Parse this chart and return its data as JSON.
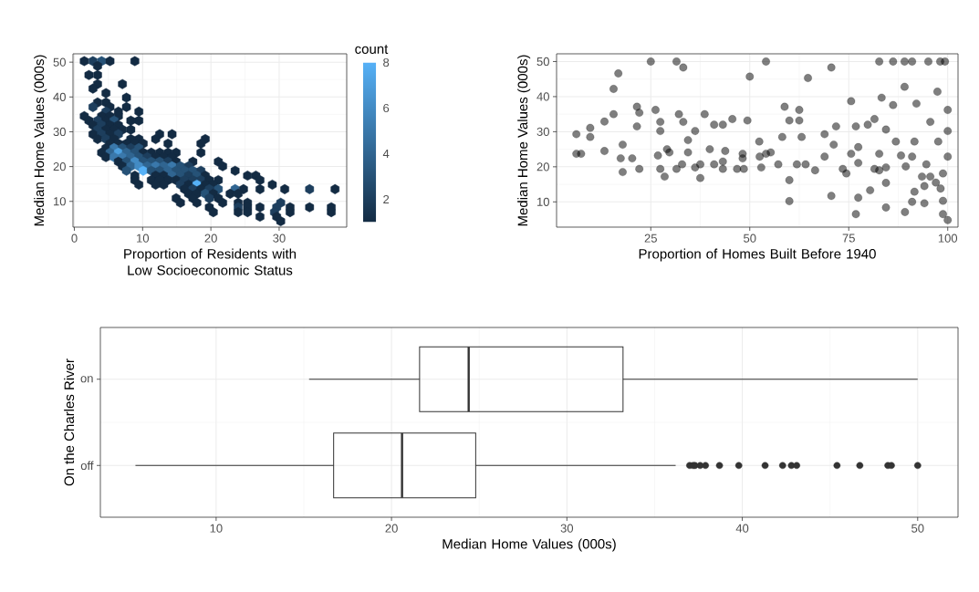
{
  "chart_data": [
    {
      "type": "scatter",
      "xlabel": "Proportion of Residents with Low Socioeconomic Status",
      "ylabel": "Median Home Values (000s)",
      "clabel": "count",
      "xlim": [
        -0.2,
        39.9
      ],
      "ylim": [
        2.6,
        52.4
      ],
      "xticks": [
        0,
        10,
        20,
        30
      ],
      "yticks": [
        10,
        20,
        30,
        40,
        50
      ],
      "clim": [
        1,
        8
      ],
      "cticks": [
        2,
        4,
        6,
        8
      ],
      "grid": true,
      "x": [
        1.45,
        2.72,
        3.99,
        5.22,
        8.86,
        3.4,
        2.13,
        3.4,
        3.4,
        7.04,
        2.72,
        4.63,
        7.63,
        3.4,
        4.63,
        2.72,
        5.22,
        7.63,
        4.63,
        6.45,
        9.45,
        1.45,
        3.99,
        5.22,
        6.45,
        2.13,
        3.4,
        4.63,
        5.81,
        8.27,
        9.45,
        2.72,
        3.99,
        5.22,
        6.45,
        3.4,
        4.63,
        5.81,
        7.04,
        8.27,
        2.72,
        3.99,
        5.22,
        6.45,
        12.5,
        14.31,
        3.4,
        4.63,
        5.81,
        8.27,
        9.45,
        11.91,
        19.18,
        5.22,
        6.45,
        7.63,
        8.86,
        10.09,
        13.72,
        18.54,
        4.63,
        5.81,
        7.04,
        8.27,
        9.45,
        3.99,
        5.22,
        6.45,
        7.63,
        8.86,
        10.09,
        11.27,
        12.5,
        13.72,
        14.91,
        18.54,
        4.63,
        5.81,
        7.04,
        8.27,
        9.45,
        10.68,
        11.91,
        13.09,
        14.31,
        6.45,
        7.63,
        8.86,
        10.09,
        11.27,
        12.5,
        13.72,
        14.91,
        17.36,
        21.09,
        7.04,
        8.27,
        9.45,
        10.68,
        11.91,
        13.09,
        14.31,
        15.54,
        16.73,
        21.73,
        7.63,
        10.09,
        11.27,
        12.5,
        13.72,
        14.91,
        16.14,
        17.36,
        18.54,
        23.55,
        8.86,
        11.91,
        13.09,
        14.31,
        15.54,
        16.73,
        17.95,
        19.18,
        25.37,
        26.59,
        8.86,
        11.27,
        12.5,
        13.72,
        14.91,
        16.14,
        17.36,
        18.54,
        19.77,
        21.09,
        27.19,
        9.45,
        11.91,
        13.09,
        15.54,
        16.73,
        17.95,
        19.18,
        20.36,
        29.0,
        16.14,
        17.36,
        18.54,
        19.77,
        21.09,
        23.55,
        24.78,
        27.19,
        30.82,
        34.46,
        38.19,
        16.73,
        17.95,
        19.18,
        20.36,
        22.82,
        24.0,
        14.91,
        17.36,
        19.77,
        21.09,
        15.54,
        17.95,
        21.73,
        24.0,
        25.37,
        30.23,
        19.77,
        24.0,
        25.37,
        27.19,
        29.64,
        31.6,
        34.46,
        37.64,
        20.36,
        24.0,
        25.37,
        29.32,
        31.6,
        37.64,
        27.19,
        29.64,
        30.23
      ],
      "values": [
        50.3,
        50.3,
        50.3,
        50.3,
        50.3,
        48.9,
        46.3,
        46.3,
        43.7,
        43.7,
        42.4,
        41.1,
        39.8,
        38.4,
        38.4,
        37.1,
        37.1,
        37.1,
        35.8,
        35.8,
        35.8,
        34.5,
        34.5,
        34.5,
        34.5,
        33.2,
        33.2,
        33.2,
        33.2,
        33.2,
        33.2,
        31.9,
        31.9,
        31.9,
        31.9,
        30.6,
        30.6,
        30.6,
        30.6,
        30.6,
        29.3,
        29.3,
        29.3,
        29.3,
        29.3,
        29.3,
        27.9,
        27.9,
        27.9,
        27.9,
        27.9,
        27.9,
        27.9,
        26.6,
        26.6,
        26.6,
        26.6,
        26.6,
        26.6,
        26.6,
        25.3,
        25.3,
        25.3,
        25.3,
        25.3,
        24.0,
        24.0,
        24.0,
        24.0,
        24.0,
        24.0,
        24.0,
        24.0,
        24.0,
        24.0,
        24.0,
        22.7,
        22.7,
        22.7,
        22.7,
        22.7,
        22.7,
        22.7,
        22.7,
        22.7,
        21.4,
        21.4,
        21.4,
        21.4,
        21.4,
        21.4,
        21.4,
        21.4,
        21.4,
        21.4,
        20.1,
        20.1,
        20.1,
        20.1,
        20.1,
        20.1,
        20.1,
        20.1,
        20.1,
        20.1,
        18.8,
        18.8,
        18.8,
        18.8,
        18.8,
        18.8,
        18.8,
        18.8,
        18.8,
        18.8,
        17.4,
        17.4,
        17.4,
        17.4,
        17.4,
        17.4,
        17.4,
        17.4,
        17.4,
        17.4,
        16.1,
        16.1,
        16.1,
        16.1,
        16.1,
        16.1,
        16.1,
        16.1,
        16.1,
        16.1,
        16.1,
        14.8,
        14.8,
        14.8,
        14.8,
        14.8,
        14.8,
        14.8,
        14.8,
        14.8,
        13.5,
        13.5,
        13.5,
        13.5,
        13.5,
        13.5,
        13.5,
        13.5,
        13.5,
        13.5,
        13.5,
        12.2,
        12.2,
        12.2,
        12.2,
        12.2,
        12.2,
        10.9,
        10.9,
        10.9,
        10.9,
        9.6,
        9.6,
        9.6,
        9.6,
        9.6,
        9.6,
        8.3,
        8.3,
        8.3,
        8.3,
        8.3,
        8.3,
        8.3,
        8.3,
        6.9,
        6.9,
        6.9,
        6.9,
        6.9,
        6.9,
        5.6,
        5.6,
        4.3
      ],
      "cvalues": [
        1,
        2,
        3,
        1,
        1,
        1,
        1,
        1,
        1,
        1,
        1,
        1,
        1,
        1,
        1,
        2,
        1,
        1,
        2,
        1,
        1,
        1,
        1,
        1,
        1,
        1,
        2,
        1,
        3,
        1,
        1,
        1,
        2,
        1,
        1,
        2,
        1,
        1,
        1,
        1,
        1,
        2,
        1,
        2,
        1,
        1,
        1,
        2,
        1,
        1,
        1,
        1,
        1,
        1,
        1,
        1,
        1,
        1,
        1,
        1,
        1,
        5,
        3,
        2,
        3,
        1,
        4,
        7,
        4,
        3,
        1,
        1,
        1,
        1,
        1,
        1,
        1,
        5,
        5,
        4,
        3,
        2,
        1,
        1,
        1,
        1,
        3,
        6,
        3,
        3,
        3,
        2,
        1,
        1,
        1,
        1,
        4,
        6,
        4,
        5,
        4,
        5,
        3,
        2,
        1,
        3,
        8,
        3,
        3,
        4,
        3,
        3,
        3,
        2,
        1,
        1,
        1,
        1,
        4,
        3,
        2,
        3,
        1,
        1,
        1,
        1,
        1,
        1,
        1,
        1,
        2,
        2,
        2,
        1,
        1,
        1,
        1,
        1,
        1,
        2,
        1,
        8,
        1,
        1,
        1,
        1,
        2,
        1,
        2,
        3,
        4,
        1,
        1,
        1,
        2,
        1,
        1,
        1,
        3,
        1,
        1,
        1,
        1,
        1,
        2,
        1,
        1,
        1,
        1,
        1,
        1,
        2,
        1,
        2,
        1,
        1,
        2,
        1,
        1,
        1,
        1,
        1,
        1,
        2,
        1,
        1,
        1,
        1,
        1
      ]
    },
    {
      "type": "scatter",
      "xlabel": "Proportion of Homes Built Before 1940",
      "ylabel": "Median Home Values (000s)",
      "xlim": [
        1.2,
        102.6
      ],
      "ylim": [
        2.8,
        52.2
      ],
      "xticks": [
        25,
        50,
        75,
        100
      ],
      "yticks": [
        10,
        20,
        30,
        40,
        50
      ],
      "grid": true,
      "marker": "circle",
      "series": [
        {
          "color": "#000000",
          "x": [
            6.2,
            9.7,
            9.7,
            6.2,
            7.4,
            15.6,
            16.8,
            13.3,
            15.6,
            13.3,
            17.9,
            17.9,
            17.4,
            20.3,
            21.5,
            22.1,
            21.5,
            22.1,
            25,
            26.2,
            27.4,
            27.4,
            28.5,
            26.8,
            29.1,
            31.5,
            33.2,
            32.1,
            33.2,
            36.2,
            34.4,
            36.2,
            37.5,
            38.6,
            41,
            43.2,
            45.6,
            49.4,
            43.8,
            46.8,
            50,
            54.1,
            52.4,
            55.3,
            58.8,
            60,
            62.5,
            62.5,
            63.1,
            58.2,
            60,
            60,
            64.7,
            61.9,
            66.5,
            68.9,
            70.6,
            71.8,
            71.2,
            70.6,
            75.6,
            76.8,
            74.4,
            77.4,
            77.4,
            76.8,
            79.8,
            81.5,
            82.7,
            83.3,
            80.4,
            82.7,
            84.4,
            86.2,
            86.2,
            89.1,
            91,
            95.1,
            98.1,
            99.3,
            89.1,
            92.1,
            97.4,
            95.6,
            100,
            100,
            84.4,
            89.2,
            91,
            86.9,
            84.4,
            82.7,
            89.4,
            91.6,
            93.5,
            94.6,
            95.6,
            97,
            98.2,
            98.8,
            98.8,
            100,
            94.1,
            91,
            98.8,
            100,
            97.6,
            57.2,
            52.5,
            48.2,
            43.2,
            41,
            37.5,
            32.9,
            31.5,
            29.7,
            34.4,
            39.9,
            48.2,
            54.1,
            64.1,
            68.9,
            73.5,
            77.4,
            75.6,
            81.5,
            84.4,
            88.2,
            94.1,
            91.6,
            52.9,
            43.2,
            48.5,
            27.4
          ],
          "values": [
            29.3,
            31.1,
            28.5,
            23.7,
            23.7,
            42.2,
            46.6,
            32.9,
            35.0,
            24.5,
            26.3,
            18.5,
            22.4,
            22.4,
            37.1,
            35.4,
            31.5,
            19.4,
            50,
            36.2,
            32.8,
            30.2,
            17.2,
            23.2,
            25.0,
            50,
            48.3,
            35.0,
            32.8,
            30.2,
            27.6,
            19.8,
            16.8,
            35.0,
            32,
            32,
            33.6,
            33.2,
            24.5,
            19.4,
            45.7,
            50,
            27.2,
            24.1,
            37.1,
            33.2,
            36.2,
            33.2,
            28.5,
            28.5,
            10.2,
            16.2,
            45.3,
            20.7,
            19.0,
            29.3,
            48.3,
            31.5,
            26.3,
            11.7,
            38.7,
            31.5,
            18.1,
            25.6,
            11.2,
            6.5,
            32.0,
            33.6,
            50,
            39.7,
            13.3,
            19.0,
            30.6,
            37.6,
            50,
            50,
            50,
            50,
            50,
            50,
            42.8,
            38.0,
            41.4,
            32.8,
            36.2,
            30.2,
            8.4,
            7.1,
            22.9,
            27.2,
            15.4,
            23.7,
            20.1,
            27.2,
            17.2,
            20.7,
            17.2,
            15.5,
            13.8,
            10.3,
            6.5,
            4.8,
            9.6,
            10.0,
            18.1,
            22.9,
            27.2,
            20.7,
            22.9,
            22.4,
            21.5,
            20.7,
            20.7,
            20.7,
            19.4,
            24.1,
            24.1,
            25.0,
            23.7,
            23.7,
            20.7,
            22.9,
            19.4,
            21.1,
            23.7,
            19.4,
            19.8,
            23.2,
            14.5,
            12.9,
            19.8,
            19.4,
            19.4,
            19.4
          ]
        }
      ]
    },
    {
      "type": "box",
      "orientation": "horizontal",
      "xlabel": "Median Home Values (000s)",
      "ylabel": "On the Charles River",
      "categories": [
        "on",
        "off"
      ],
      "xlim": [
        3.4,
        52.3
      ],
      "xticks": [
        10,
        20,
        30,
        40,
        50
      ],
      "grid": true,
      "boxes": [
        {
          "low": 15.3,
          "q1": 21.6,
          "median": 24.4,
          "q3": 33.2,
          "high": 50
        },
        {
          "low": 5.4,
          "q1": 16.7,
          "median": 20.6,
          "q3": 24.8,
          "high": 36.2,
          "outliers": [
            37.0,
            37.2,
            37.3,
            37.6,
            37.9,
            38.7,
            39.8,
            41.3,
            42.3,
            42.8,
            43.1,
            45.4,
            46.7,
            48.3,
            48.5,
            50
          ]
        }
      ]
    }
  ]
}
